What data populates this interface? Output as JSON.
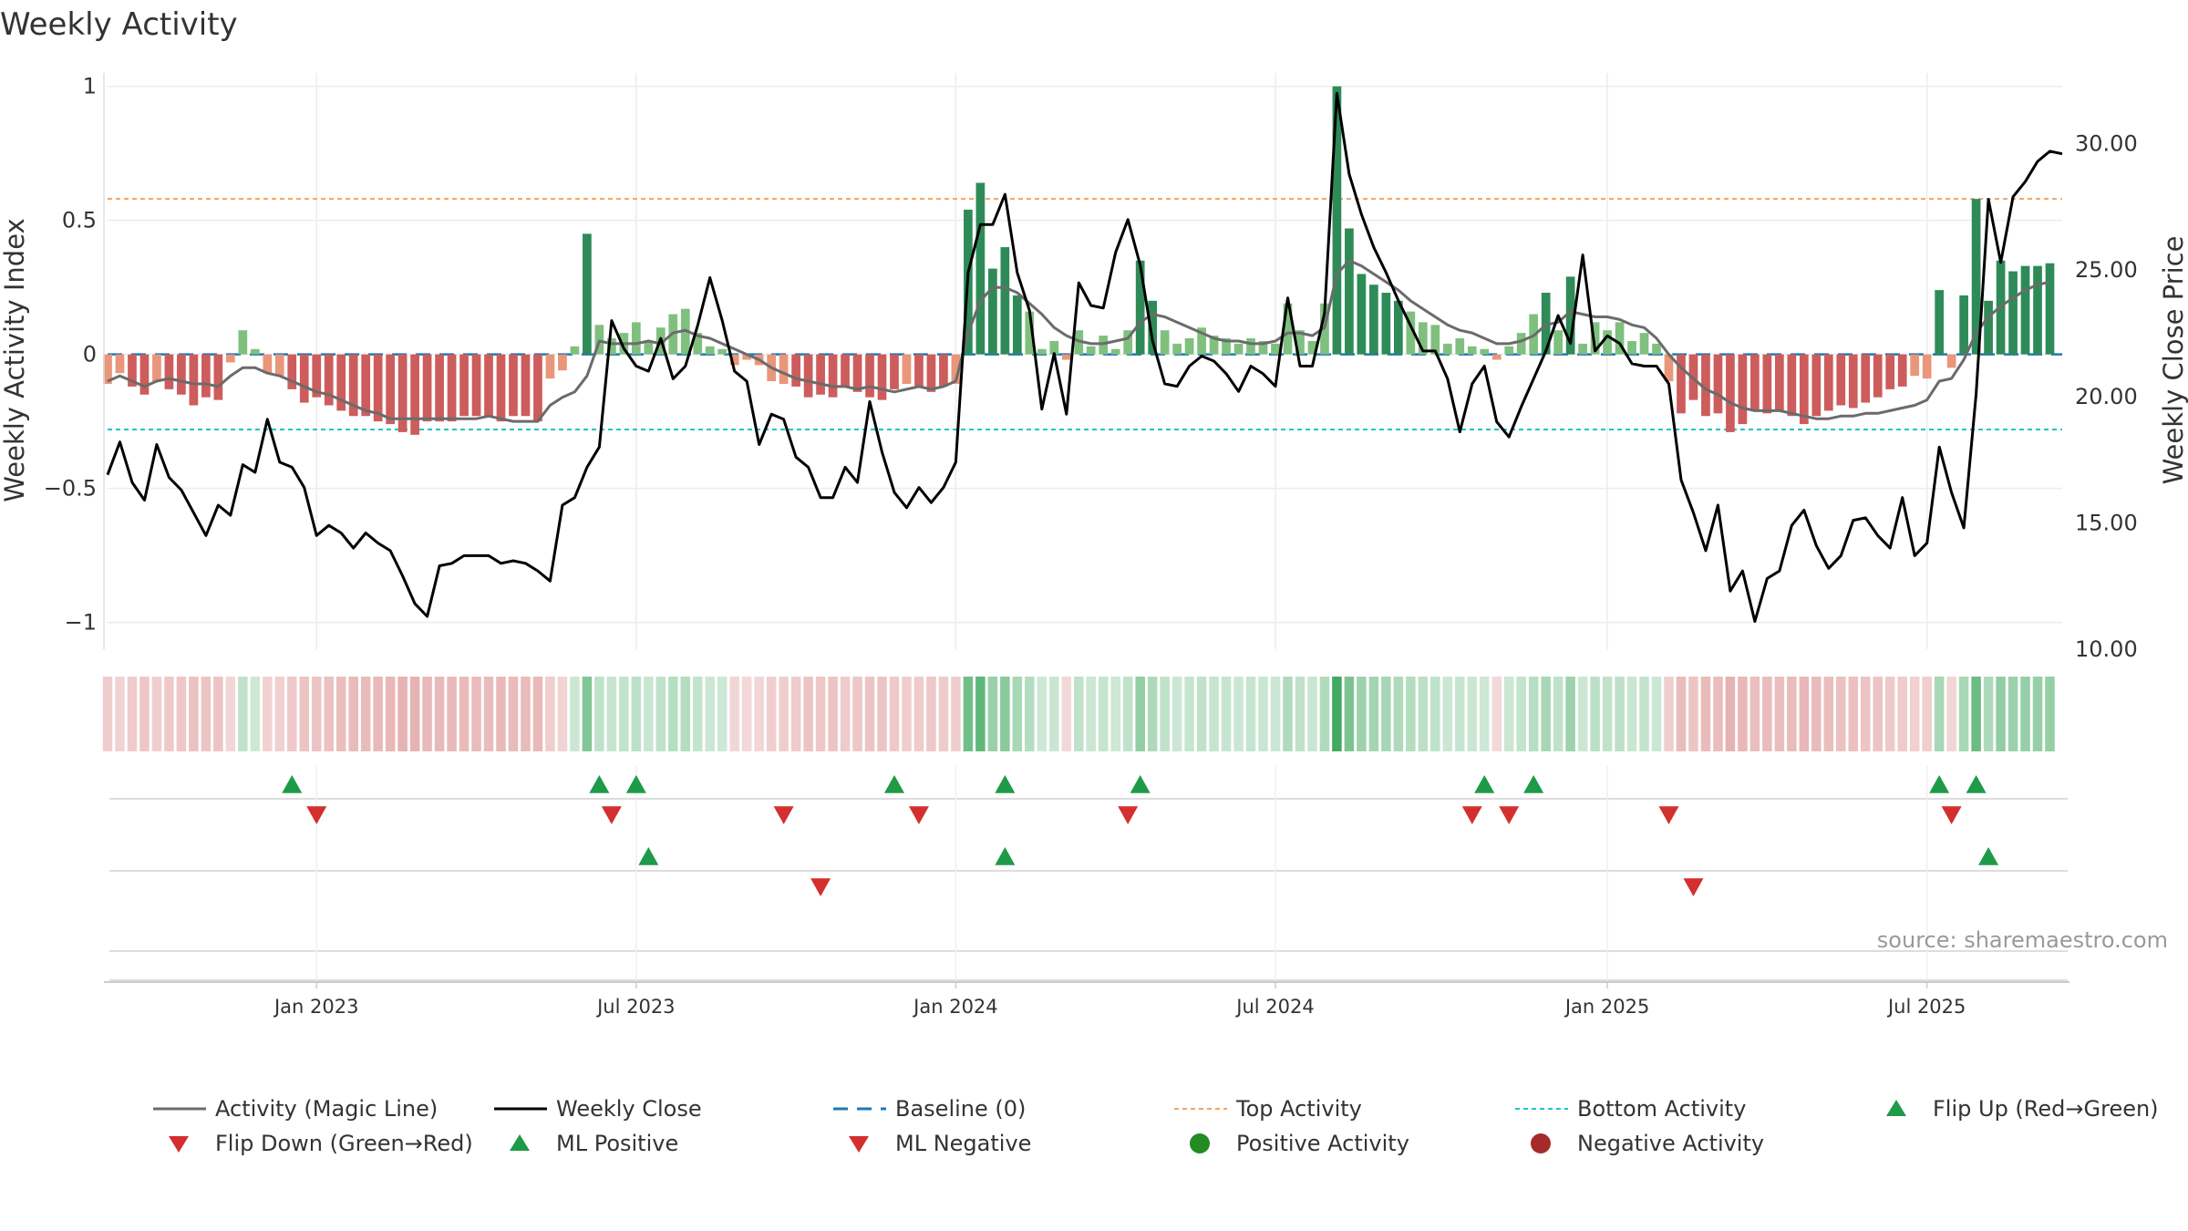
{
  "chart_data": {
    "type": "bar",
    "title": "Weekly Activity",
    "left_axis": {
      "label": "Weekly Activity Index",
      "range": [
        -1.1,
        1.05
      ],
      "ticks": [
        {
          "v": 1,
          "t": "1"
        },
        {
          "v": 0.5,
          "t": "0.5"
        },
        {
          "v": 0,
          "t": "0"
        },
        {
          "v": -0.5,
          "t": "−0.5"
        },
        {
          "v": -1,
          "t": "−1"
        }
      ]
    },
    "right_axis": {
      "label": "Weekly Close Price",
      "range": [
        10,
        32.8
      ],
      "ticks": [
        {
          "v": 30,
          "t": "30.00"
        },
        {
          "v": 25,
          "t": "25.00"
        },
        {
          "v": 20,
          "t": "20.00"
        },
        {
          "v": 15,
          "t": "15.00"
        },
        {
          "v": 10,
          "t": "10.00"
        }
      ]
    },
    "x_range": [
      "2022-09-05",
      "2025-09-22"
    ],
    "x_ticks": [
      {
        "date": "2023-01-02",
        "label": "Jan 2023"
      },
      {
        "date": "2023-07-03",
        "label": "Jul 2023"
      },
      {
        "date": "2024-01-01",
        "label": "Jan 2024"
      },
      {
        "date": "2024-07-01",
        "label": "Jul 2024"
      },
      {
        "date": "2025-01-06",
        "label": "Jan 2025"
      },
      {
        "date": "2025-07-07",
        "label": "Jul 2025"
      }
    ],
    "top_activity": 0.58,
    "bottom_activity": -0.28,
    "baseline": 0,
    "start_date": "2022-09-05",
    "week_days": 7,
    "activity": [
      -0.11,
      -0.07,
      -0.12,
      -0.15,
      -0.1,
      -0.13,
      -0.15,
      -0.19,
      -0.16,
      -0.17,
      -0.03,
      0.09,
      0.02,
      -0.07,
      -0.08,
      -0.13,
      -0.18,
      -0.16,
      -0.19,
      -0.21,
      -0.23,
      -0.23,
      -0.25,
      -0.26,
      -0.29,
      -0.3,
      -0.25,
      -0.25,
      -0.25,
      -0.23,
      -0.23,
      -0.23,
      -0.25,
      -0.23,
      -0.23,
      -0.25,
      -0.09,
      -0.06,
      0.03,
      0.45,
      0.11,
      0.06,
      0.08,
      0.12,
      0.05,
      0.1,
      0.15,
      0.17,
      0.08,
      0.03,
      0.02,
      -0.04,
      -0.02,
      -0.04,
      -0.1,
      -0.11,
      -0.12,
      -0.16,
      -0.15,
      -0.16,
      -0.12,
      -0.14,
      -0.16,
      -0.17,
      -0.13,
      -0.11,
      -0.12,
      -0.14,
      -0.12,
      -0.11,
      0.54,
      0.64,
      0.32,
      0.4,
      0.22,
      0.16,
      0.02,
      0.05,
      -0.02,
      0.09,
      0.03,
      0.07,
      0.02,
      0.09,
      0.35,
      0.2,
      0.09,
      0.04,
      0.06,
      0.1,
      0.07,
      0.06,
      0.04,
      0.06,
      0.05,
      0.04,
      0.19,
      0.09,
      0.05,
      0.19,
      1.0,
      0.47,
      0.3,
      0.26,
      0.23,
      0.2,
      0.16,
      0.12,
      0.11,
      0.04,
      0.06,
      0.03,
      0.02,
      -0.02,
      0.03,
      0.08,
      0.15,
      0.23,
      0.09,
      0.29,
      0.04,
      0.12,
      0.09,
      0.12,
      0.05,
      0.08,
      0.04,
      -0.1,
      -0.22,
      -0.17,
      -0.23,
      -0.22,
      -0.29,
      -0.26,
      -0.21,
      -0.22,
      -0.21,
      -0.23,
      -0.26,
      -0.23,
      -0.21,
      -0.19,
      -0.2,
      -0.18,
      -0.16,
      -0.13,
      -0.12,
      -0.08,
      -0.09,
      0.24,
      -0.05,
      0.22,
      0.58,
      0.2,
      0.35,
      0.31,
      0.33,
      0.33,
      0.34
    ],
    "magic_line": [
      -0.1,
      -0.08,
      -0.1,
      -0.12,
      -0.1,
      -0.09,
      -0.1,
      -0.11,
      -0.11,
      -0.12,
      -0.08,
      -0.05,
      -0.05,
      -0.07,
      -0.08,
      -0.1,
      -0.12,
      -0.14,
      -0.15,
      -0.17,
      -0.19,
      -0.21,
      -0.22,
      -0.24,
      -0.24,
      -0.24,
      -0.24,
      -0.24,
      -0.24,
      -0.24,
      -0.24,
      -0.23,
      -0.24,
      -0.25,
      -0.25,
      -0.25,
      -0.19,
      -0.16,
      -0.14,
      -0.08,
      0.05,
      0.04,
      0.04,
      0.04,
      0.05,
      0.04,
      0.08,
      0.09,
      0.07,
      0.06,
      0.04,
      0.02,
      0.0,
      -0.02,
      -0.05,
      -0.07,
      -0.09,
      -0.1,
      -0.11,
      -0.12,
      -0.12,
      -0.13,
      -0.12,
      -0.13,
      -0.14,
      -0.13,
      -0.12,
      -0.13,
      -0.12,
      -0.1,
      0.08,
      0.2,
      0.25,
      0.25,
      0.23,
      0.19,
      0.15,
      0.1,
      0.07,
      0.05,
      0.04,
      0.04,
      0.05,
      0.06,
      0.12,
      0.15,
      0.14,
      0.12,
      0.1,
      0.08,
      0.06,
      0.05,
      0.05,
      0.04,
      0.04,
      0.05,
      0.08,
      0.08,
      0.07,
      0.1,
      0.3,
      0.35,
      0.33,
      0.3,
      0.27,
      0.24,
      0.2,
      0.17,
      0.14,
      0.11,
      0.09,
      0.08,
      0.06,
      0.04,
      0.04,
      0.05,
      0.07,
      0.11,
      0.12,
      0.16,
      0.15,
      0.14,
      0.14,
      0.13,
      0.11,
      0.1,
      0.06,
      0.0,
      -0.05,
      -0.09,
      -0.13,
      -0.15,
      -0.18,
      -0.2,
      -0.21,
      -0.21,
      -0.21,
      -0.22,
      -0.23,
      -0.24,
      -0.24,
      -0.23,
      -0.23,
      -0.22,
      -0.22,
      -0.21,
      -0.2,
      -0.19,
      -0.17,
      -0.1,
      -0.09,
      -0.02,
      0.08,
      0.14,
      0.18,
      0.21,
      0.24,
      0.26,
      0.27
    ],
    "weekly_close": [
      16.9,
      18.2,
      16.6,
      15.9,
      18.1,
      16.8,
      16.3,
      15.4,
      14.5,
      15.7,
      15.3,
      17.3,
      17.0,
      19.1,
      17.4,
      17.2,
      16.4,
      14.5,
      14.9,
      14.6,
      14.0,
      14.6,
      14.2,
      13.9,
      12.9,
      11.8,
      11.3,
      13.3,
      13.4,
      13.7,
      13.7,
      13.7,
      13.4,
      13.5,
      13.4,
      13.1,
      12.7,
      15.7,
      16.0,
      17.2,
      18.0,
      23.0,
      21.9,
      21.2,
      21.0,
      22.3,
      20.7,
      21.2,
      22.8,
      24.7,
      23.0,
      21.0,
      20.6,
      18.1,
      19.3,
      19.1,
      17.6,
      17.2,
      16.0,
      16.0,
      17.2,
      16.6,
      19.8,
      17.8,
      16.2,
      15.6,
      16.4,
      15.8,
      16.4,
      17.4,
      24.9,
      26.8,
      26.8,
      28.0,
      24.9,
      23.4,
      19.5,
      21.7,
      19.3,
      24.5,
      23.6,
      23.5,
      25.7,
      27.0,
      25.2,
      22.2,
      20.5,
      20.4,
      21.2,
      21.6,
      21.4,
      20.9,
      20.2,
      21.2,
      20.9,
      20.4,
      23.9,
      21.2,
      21.2,
      23.3,
      32.0,
      28.8,
      27.2,
      25.9,
      24.9,
      23.8,
      22.8,
      21.8,
      21.8,
      20.7,
      18.6,
      20.5,
      21.2,
      19.0,
      18.4,
      19.6,
      20.7,
      21.8,
      23.2,
      22.1,
      25.6,
      21.8,
      22.4,
      22.1,
      21.3,
      21.2,
      21.2,
      20.5,
      16.7,
      15.4,
      13.9,
      15.7,
      12.3,
      13.1,
      11.1,
      12.8,
      13.1,
      14.9,
      15.5,
      14.1,
      13.2,
      13.7,
      15.1,
      15.2,
      14.5,
      14.0,
      16.0,
      13.7,
      14.2,
      18.0,
      16.2,
      14.8,
      20.1,
      27.8,
      25.3,
      27.9,
      28.5,
      29.3,
      29.7,
      29.6
    ],
    "flip_up_row1": [
      "2022-12-19",
      "2023-06-12",
      "2023-07-03",
      "2023-11-27",
      "2024-01-29",
      "2024-04-15",
      "2024-10-28",
      "2024-11-25",
      "2025-07-14",
      "2025-08-04"
    ],
    "flip_down_row1": [
      "2023-01-02",
      "2023-06-19",
      "2023-09-25",
      "2023-12-11",
      "2024-04-08",
      "2024-10-21",
      "2024-11-11",
      "2025-02-10",
      "2025-07-21"
    ],
    "ml_positive_row2": [
      "2023-07-10",
      "2024-01-29",
      "2025-08-11"
    ],
    "ml_negative_row2": [
      "2023-10-16",
      "2025-02-24"
    ],
    "colors": {
      "strong_green": "#2e8b57",
      "light_green": "#7fc07f",
      "strong_red": "#cd5c5c",
      "light_red": "#e9967a",
      "magic_line": "#6b6b6b",
      "close": "#000000",
      "baseline": "#1f77b4",
      "top": "#f4a460",
      "bottom": "#20c5c5",
      "up_marker": "#1e9a48",
      "down_marker": "#d32f2f",
      "pos_dot": "#228b22",
      "neg_dot": "#a52a2a"
    },
    "legend": [
      {
        "key": "magic",
        "label": "Activity (Magic Line)"
      },
      {
        "key": "close",
        "label": "Weekly Close"
      },
      {
        "key": "baseline",
        "label": "Baseline (0)"
      },
      {
        "key": "top",
        "label": "Top Activity"
      },
      {
        "key": "bottom",
        "label": "Bottom Activity"
      },
      {
        "key": "flipup",
        "label": "Flip Up (Red→Green)"
      },
      {
        "key": "flipdown",
        "label": "Flip Down (Green→Red)"
      },
      {
        "key": "mlpos",
        "label": "ML Positive"
      },
      {
        "key": "mlneg",
        "label": "ML Negative"
      },
      {
        "key": "posact",
        "label": "Positive Activity"
      },
      {
        "key": "negact",
        "label": "Negative Activity"
      }
    ],
    "source": "source: sharemaestro.com"
  }
}
